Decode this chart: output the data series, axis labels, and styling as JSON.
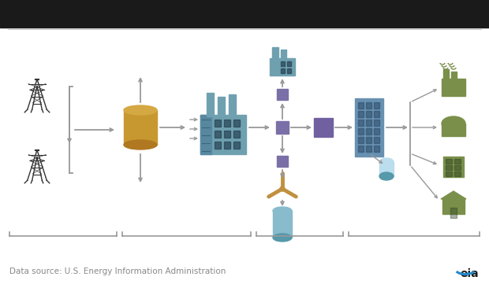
{
  "bg_color": "#ffffff",
  "top_bar_color": "#1a1a1a",
  "top_bar_height": 35,
  "arrow_color": "#999999",
  "well_color": "#333333",
  "storage_color_top": "#d4a843",
  "storage_color_body": "#c89830",
  "storage_color_bot": "#b07820",
  "plant_color": "#6fa0b0",
  "plant_dark": "#5888a0",
  "pipe_color_small": "#7b6fa8",
  "pipe_color_large": "#7060a0",
  "building_color": "#6890b0",
  "consumer_industrial": "#7a8f4a",
  "consumer_commercial": "#7a8f4a",
  "consumer_residential": "#7a8f4a",
  "water_color": "#88bbcc",
  "wind_color": "#c09040",
  "source_text": "Data source: U.S. Energy Information Administration",
  "source_color": "#888888",
  "source_fontsize": 7.5,
  "eia_color": "#2288cc"
}
